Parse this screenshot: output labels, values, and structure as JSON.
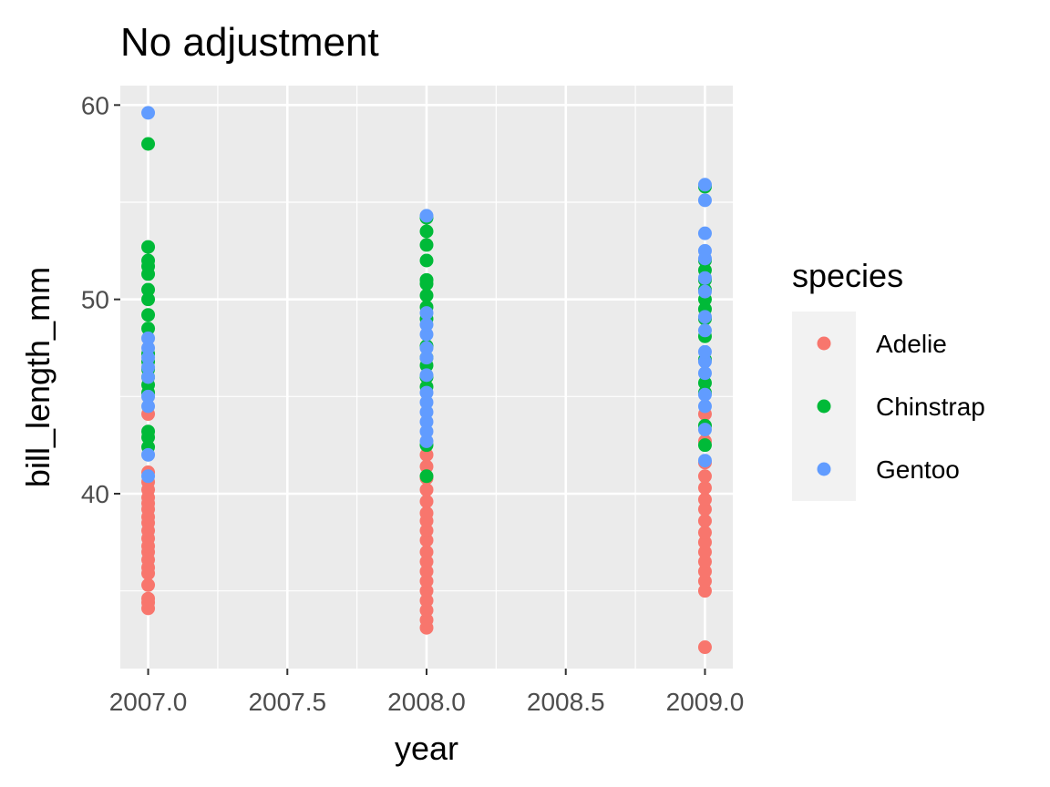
{
  "chart_data": {
    "type": "scatter",
    "title": "No adjustment",
    "xlabel": "year",
    "ylabel": "bill_length_mm",
    "xlim": [
      2006.9,
      2009.1
    ],
    "ylim": [
      31,
      61
    ],
    "x_ticks": [
      "2007.0",
      "2007.5",
      "2008.0",
      "2008.5",
      "2009.0"
    ],
    "x_tick_values": [
      2007.0,
      2007.5,
      2008.0,
      2008.5,
      2009.0
    ],
    "y_ticks": [
      "40",
      "50",
      "60"
    ],
    "y_tick_values": [
      40,
      50,
      60
    ],
    "y_minor_values": [
      35,
      45,
      55
    ],
    "x_minor_values": [
      2007.25,
      2007.75,
      2008.25,
      2008.75
    ],
    "grid": true,
    "legend": {
      "title": "species",
      "position": "right"
    },
    "series": [
      {
        "name": "Adelie",
        "color": "#F8766D",
        "points": [
          {
            "x": 2007,
            "y": 34.1
          },
          {
            "x": 2007,
            "y": 34.4
          },
          {
            "x": 2007,
            "y": 34.6
          },
          {
            "x": 2007,
            "y": 35.3
          },
          {
            "x": 2007,
            "y": 35.9
          },
          {
            "x": 2007,
            "y": 36.2
          },
          {
            "x": 2007,
            "y": 36.6
          },
          {
            "x": 2007,
            "y": 37.0
          },
          {
            "x": 2007,
            "y": 37.3
          },
          {
            "x": 2007,
            "y": 37.7
          },
          {
            "x": 2007,
            "y": 38.1
          },
          {
            "x": 2007,
            "y": 38.5
          },
          {
            "x": 2007,
            "y": 38.8
          },
          {
            "x": 2007,
            "y": 39.2
          },
          {
            "x": 2007,
            "y": 39.5
          },
          {
            "x": 2007,
            "y": 39.8
          },
          {
            "x": 2007,
            "y": 40.2
          },
          {
            "x": 2007,
            "y": 40.6
          },
          {
            "x": 2007,
            "y": 41.1
          },
          {
            "x": 2007,
            "y": 44.1
          },
          {
            "x": 2008,
            "y": 33.1
          },
          {
            "x": 2008,
            "y": 33.5
          },
          {
            "x": 2008,
            "y": 34.0
          },
          {
            "x": 2008,
            "y": 34.5
          },
          {
            "x": 2008,
            "y": 35.0
          },
          {
            "x": 2008,
            "y": 35.5
          },
          {
            "x": 2008,
            "y": 36.0
          },
          {
            "x": 2008,
            "y": 36.5
          },
          {
            "x": 2008,
            "y": 37.0
          },
          {
            "x": 2008,
            "y": 37.6
          },
          {
            "x": 2008,
            "y": 38.1
          },
          {
            "x": 2008,
            "y": 38.6
          },
          {
            "x": 2008,
            "y": 39.0
          },
          {
            "x": 2008,
            "y": 39.6
          },
          {
            "x": 2008,
            "y": 40.2
          },
          {
            "x": 2008,
            "y": 40.8
          },
          {
            "x": 2008,
            "y": 41.4
          },
          {
            "x": 2008,
            "y": 42.0
          },
          {
            "x": 2009,
            "y": 32.1
          },
          {
            "x": 2009,
            "y": 35.0
          },
          {
            "x": 2009,
            "y": 35.5
          },
          {
            "x": 2009,
            "y": 36.0
          },
          {
            "x": 2009,
            "y": 36.5
          },
          {
            "x": 2009,
            "y": 37.0
          },
          {
            "x": 2009,
            "y": 37.5
          },
          {
            "x": 2009,
            "y": 38.0
          },
          {
            "x": 2009,
            "y": 38.6
          },
          {
            "x": 2009,
            "y": 39.2
          },
          {
            "x": 2009,
            "y": 39.7
          },
          {
            "x": 2009,
            "y": 40.3
          },
          {
            "x": 2009,
            "y": 40.9
          },
          {
            "x": 2009,
            "y": 41.6
          },
          {
            "x": 2009,
            "y": 42.7
          },
          {
            "x": 2009,
            "y": 44.1
          }
        ]
      },
      {
        "name": "Chinstrap",
        "color": "#00BA38",
        "points": [
          {
            "x": 2007,
            "y": 42.4
          },
          {
            "x": 2007,
            "y": 42.9
          },
          {
            "x": 2007,
            "y": 43.2
          },
          {
            "x": 2007,
            "y": 45.2
          },
          {
            "x": 2007,
            "y": 45.6
          },
          {
            "x": 2007,
            "y": 46.0
          },
          {
            "x": 2007,
            "y": 46.4
          },
          {
            "x": 2007,
            "y": 46.8
          },
          {
            "x": 2007,
            "y": 47.2
          },
          {
            "x": 2007,
            "y": 48.5
          },
          {
            "x": 2007,
            "y": 49.2
          },
          {
            "x": 2007,
            "y": 50.0
          },
          {
            "x": 2007,
            "y": 50.5
          },
          {
            "x": 2007,
            "y": 51.3
          },
          {
            "x": 2007,
            "y": 51.7
          },
          {
            "x": 2007,
            "y": 52.0
          },
          {
            "x": 2007,
            "y": 52.7
          },
          {
            "x": 2007,
            "y": 58.0
          },
          {
            "x": 2008,
            "y": 40.9
          },
          {
            "x": 2008,
            "y": 42.5
          },
          {
            "x": 2008,
            "y": 45.5
          },
          {
            "x": 2008,
            "y": 46.0
          },
          {
            "x": 2008,
            "y": 46.6
          },
          {
            "x": 2008,
            "y": 47.0
          },
          {
            "x": 2008,
            "y": 47.6
          },
          {
            "x": 2008,
            "y": 49.0
          },
          {
            "x": 2008,
            "y": 49.6
          },
          {
            "x": 2008,
            "y": 50.2
          },
          {
            "x": 2008,
            "y": 50.8
          },
          {
            "x": 2008,
            "y": 51.0
          },
          {
            "x": 2008,
            "y": 52.0
          },
          {
            "x": 2008,
            "y": 52.8
          },
          {
            "x": 2008,
            "y": 53.5
          },
          {
            "x": 2008,
            "y": 54.2
          },
          {
            "x": 2009,
            "y": 42.5
          },
          {
            "x": 2009,
            "y": 43.5
          },
          {
            "x": 2009,
            "y": 45.2
          },
          {
            "x": 2009,
            "y": 45.7
          },
          {
            "x": 2009,
            "y": 46.9
          },
          {
            "x": 2009,
            "y": 48.1
          },
          {
            "x": 2009,
            "y": 49.0
          },
          {
            "x": 2009,
            "y": 49.5
          },
          {
            "x": 2009,
            "y": 50.0
          },
          {
            "x": 2009,
            "y": 50.5
          },
          {
            "x": 2009,
            "y": 51.0
          },
          {
            "x": 2009,
            "y": 51.5
          },
          {
            "x": 2009,
            "y": 52.0
          },
          {
            "x": 2009,
            "y": 55.8
          }
        ]
      },
      {
        "name": "Gentoo",
        "color": "#619CFF",
        "points": [
          {
            "x": 2007,
            "y": 40.9
          },
          {
            "x": 2007,
            "y": 42.0
          },
          {
            "x": 2007,
            "y": 44.5
          },
          {
            "x": 2007,
            "y": 45.0
          },
          {
            "x": 2007,
            "y": 46.0
          },
          {
            "x": 2007,
            "y": 46.5
          },
          {
            "x": 2007,
            "y": 47.0
          },
          {
            "x": 2007,
            "y": 47.5
          },
          {
            "x": 2007,
            "y": 48.0
          },
          {
            "x": 2007,
            "y": 59.6
          },
          {
            "x": 2008,
            "y": 42.7
          },
          {
            "x": 2008,
            "y": 43.2
          },
          {
            "x": 2008,
            "y": 43.7
          },
          {
            "x": 2008,
            "y": 44.2
          },
          {
            "x": 2008,
            "y": 44.7
          },
          {
            "x": 2008,
            "y": 45.2
          },
          {
            "x": 2008,
            "y": 46.1
          },
          {
            "x": 2008,
            "y": 47.0
          },
          {
            "x": 2008,
            "y": 47.5
          },
          {
            "x": 2008,
            "y": 48.2
          },
          {
            "x": 2008,
            "y": 48.7
          },
          {
            "x": 2008,
            "y": 49.3
          },
          {
            "x": 2008,
            "y": 54.3
          },
          {
            "x": 2009,
            "y": 41.7
          },
          {
            "x": 2009,
            "y": 43.3
          },
          {
            "x": 2009,
            "y": 44.5
          },
          {
            "x": 2009,
            "y": 45.1
          },
          {
            "x": 2009,
            "y": 46.2
          },
          {
            "x": 2009,
            "y": 46.8
          },
          {
            "x": 2009,
            "y": 47.3
          },
          {
            "x": 2009,
            "y": 48.4
          },
          {
            "x": 2009,
            "y": 49.1
          },
          {
            "x": 2009,
            "y": 50.4
          },
          {
            "x": 2009,
            "y": 51.1
          },
          {
            "x": 2009,
            "y": 52.1
          },
          {
            "x": 2009,
            "y": 52.5
          },
          {
            "x": 2009,
            "y": 53.4
          },
          {
            "x": 2009,
            "y": 55.1
          },
          {
            "x": 2009,
            "y": 55.9
          }
        ]
      }
    ]
  }
}
